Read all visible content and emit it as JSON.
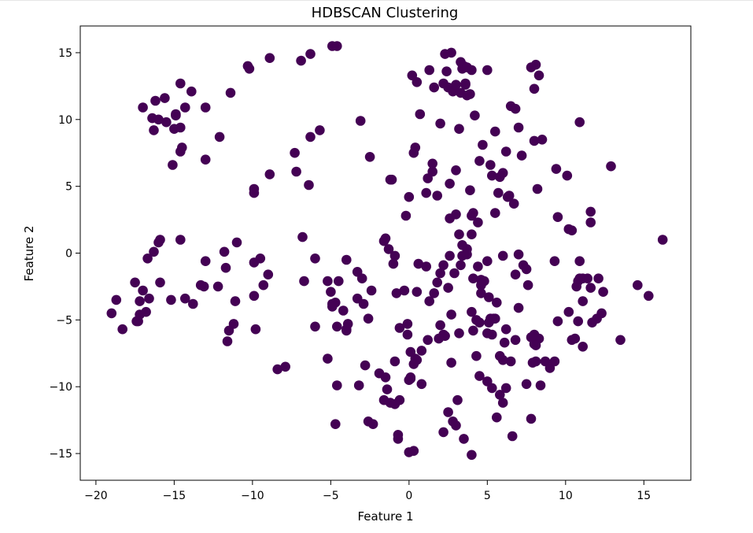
{
  "chart_data": {
    "type": "scatter",
    "title": "HDBSCAN Clustering",
    "xlabel": "Feature 1",
    "ylabel": "Feature 2",
    "xlim": [
      -21,
      18
    ],
    "ylim": [
      -17,
      17
    ],
    "xticks": [
      -20,
      -15,
      -10,
      -5,
      0,
      5,
      10,
      15
    ],
    "yticks": [
      -15,
      -10,
      -5,
      0,
      5,
      10,
      15
    ],
    "xtick_labels": [
      "−20",
      "−15",
      "−10",
      "−5",
      "0",
      "5",
      "10",
      "15"
    ],
    "ytick_labels": [
      "−15",
      "−10",
      "−5",
      "0",
      "5",
      "10",
      "15"
    ],
    "grid": false,
    "legend": "none",
    "point_color": "#440154",
    "series": [
      {
        "x": [
          -14.6,
          -15.6,
          -14.9,
          -14.3,
          -16.4,
          -13.9,
          -17.0,
          -16.2,
          -15.5,
          -16.3,
          -14.6,
          -15.0,
          -14.9,
          -14.6,
          -14.5,
          -16.0,
          -15.1,
          -13.0,
          -13.0,
          -12.1,
          -11.4,
          -10.2,
          -10.3,
          -8.9,
          -6.9,
          -6.3,
          -4.9,
          -4.6,
          -7.2,
          -7.3,
          -8.9,
          -9.9,
          -9.9,
          -6.3,
          -6.4,
          -5.7,
          -3.1,
          -2.5,
          -1.2,
          -1.1,
          -15.9,
          -16.0,
          -14.6,
          -16.7,
          -17.0,
          -16.3,
          -17.5,
          -15.9,
          -17.2,
          -16.8,
          -17.3,
          -19.0,
          -18.7,
          -18.3,
          -17.4,
          -17.2,
          -16.6,
          -15.2,
          -14.3,
          -13.8,
          -13.1,
          -13.0,
          -13.3,
          -12.2,
          -11.8,
          -11.1,
          -11.2,
          -11.5,
          -11.6,
          -11.7,
          -11.0,
          -9.9,
          -9.9,
          -9.5,
          -9.3,
          -9.0,
          -9.8,
          -8.4,
          -7.9,
          -6.8,
          -6.7,
          -6.0,
          -6.0,
          -4.7,
          -4.9,
          -4.5,
          -4.2,
          -4.0,
          -3.9,
          -4.0,
          -3.3,
          -3.0,
          -2.4,
          -3.2,
          -2.8,
          -2.6,
          -2.3,
          -5.2,
          -5.0,
          -4.9,
          -5.2,
          -4.6,
          -4.7,
          -4.6,
          -4.0,
          -2.6,
          -1.9,
          -1.5,
          -1.4,
          -1.6,
          -1.2,
          -0.9,
          -0.9,
          -0.7,
          -0.7,
          -1.6,
          -1.5,
          -1.3,
          -1.0,
          -0.8,
          -3.3,
          -2.9,
          -0.6,
          -0.1,
          0.1,
          0.4,
          0.5,
          0.6,
          1.1,
          1.3,
          0.8,
          0.1,
          0.3,
          0.0,
          -0.9,
          -0.2,
          0.0,
          0.3,
          0.4,
          0.5,
          0.2,
          0.7,
          1.1,
          1.2,
          1.5,
          1.8,
          2.0,
          2.2,
          2.4,
          1.6,
          1.3,
          1.5,
          2.5,
          2.8,
          3.0,
          3.3,
          3.4,
          3.6,
          3.7,
          2.3,
          2.7,
          3.2,
          3.0,
          2.6,
          3.9,
          4.0,
          4.2,
          3.5,
          3.3,
          3.6,
          3.9,
          3.7,
          4.0,
          4.1,
          4.4,
          5.0,
          4.5,
          4.7,
          5.2,
          5.5,
          5.3,
          5.8,
          6.0,
          5.7,
          5.5,
          6.3,
          6.4,
          6.2,
          6.5,
          6.8,
          7.0,
          7.2,
          6.7,
          8.0,
          8.2,
          8.5,
          8.0,
          8.3,
          8.1,
          7.8,
          9.4,
          9.5,
          10.1,
          10.9,
          10.2,
          10.4,
          10.9,
          11.6,
          11.6,
          12.9,
          11.1,
          11.6,
          4.0,
          4.3,
          4.5,
          5.0,
          5.3,
          5.6,
          6.0,
          6.5,
          6.2,
          5.8,
          6.6,
          7.5,
          7.8,
          8.0,
          8.4,
          7.3,
          7.0,
          4.1,
          4.3,
          4.5,
          5.2,
          5.6,
          5.0,
          4.1,
          3.4,
          3.2,
          2.7,
          2.3,
          2.0,
          1.6,
          1.8,
          2.0,
          2.2,
          6.0,
          7.0,
          7.5,
          6.8,
          7.6,
          8.0,
          8.3,
          8.1,
          7.9,
          8.7,
          9.0,
          9.3,
          9.5,
          10.2,
          10.4,
          10.6,
          10.8,
          11.1,
          12.0,
          12.3,
          11.7,
          12.4,
          12.1,
          10.7,
          10.8,
          11.4,
          11.1,
          3.7,
          3.3,
          2.9,
          2.6,
          2.5,
          2.7,
          2.2,
          1.9,
          1.2,
          0.8,
          0.5,
          0.1,
          -0.6,
          -0.3,
          -0.1,
          0.3,
          0.0,
          2.6,
          3.0,
          3.2,
          3.4,
          3.7,
          4.0,
          4.4,
          4.6,
          4.8,
          5.1,
          5.3,
          5.5,
          6.0,
          6.1,
          5.8,
          5.0,
          4.6,
          4.0,
          3.5,
          3.0,
          2.5,
          2.2,
          2.8,
          3.1,
          14.6,
          15.3,
          16.2,
          13.5,
          10.9,
          9.3,
          8.1,
          7.8,
          6.8,
          6.2,
          5.4,
          5.1,
          4.6
        ],
        "y": [
          12.7,
          11.6,
          10.4,
          10.9,
          10.1,
          12.1,
          10.9,
          11.4,
          9.8,
          9.2,
          9.4,
          9.3,
          10.3,
          7.6,
          7.9,
          10.0,
          6.6,
          7.0,
          10.9,
          8.7,
          12.0,
          13.8,
          14.0,
          14.6,
          14.4,
          14.9,
          15.5,
          15.5,
          6.1,
          7.5,
          5.9,
          4.8,
          4.5,
          8.7,
          5.1,
          9.2,
          9.9,
          7.2,
          5.5,
          5.5,
          1.0,
          0.8,
          1.0,
          -0.4,
          -2.8,
          0.1,
          -2.2,
          -2.2,
          -3.6,
          -4.4,
          -5.1,
          -4.5,
          -3.5,
          -5.7,
          -5.1,
          -4.6,
          -3.4,
          -3.5,
          -3.4,
          -3.8,
          -2.5,
          -0.6,
          -2.4,
          -2.5,
          0.1,
          -3.6,
          -5.3,
          -5.8,
          -6.6,
          -1.1,
          0.8,
          -3.2,
          -0.7,
          -0.4,
          -2.4,
          -1.6,
          -5.7,
          -8.7,
          -8.5,
          1.2,
          -2.1,
          -0.4,
          -5.5,
          -3.7,
          -3.8,
          -2.1,
          -4.3,
          -0.5,
          -5.3,
          -5.8,
          -1.4,
          -1.9,
          -2.8,
          -9.9,
          -8.4,
          -12.6,
          -12.8,
          -2.1,
          -2.9,
          -4.0,
          -7.9,
          -9.9,
          -12.8,
          -5.5,
          -5.7,
          -4.9,
          -9.0,
          -9.3,
          -10.2,
          -11.0,
          -11.2,
          -11.3,
          -8.1,
          -13.6,
          -13.9,
          0.9,
          1.1,
          0.3,
          -0.8,
          -3.0,
          -3.4,
          -3.8,
          -5.6,
          -6.1,
          -7.4,
          -7.9,
          -2.9,
          -0.8,
          -1.0,
          -3.6,
          -9.8,
          -9.4,
          -14.8,
          -14.9,
          -0.2,
          2.8,
          4.2,
          7.5,
          7.9,
          12.8,
          13.3,
          10.4,
          4.5,
          5.6,
          6.1,
          4.3,
          9.7,
          12.7,
          13.6,
          12.4,
          13.7,
          6.7,
          12.4,
          12.1,
          12.6,
          12.0,
          13.8,
          12.7,
          11.8,
          14.9,
          15.0,
          9.3,
          6.2,
          5.2,
          4.7,
          13.7,
          10.3,
          14.0,
          14.3,
          12.6,
          11.9,
          13.9,
          2.8,
          3.0,
          2.3,
          13.7,
          6.9,
          8.1,
          6.6,
          9.1,
          5.8,
          5.7,
          6.0,
          4.5,
          3.0,
          4.2,
          4.3,
          7.6,
          11.0,
          10.8,
          9.4,
          7.3,
          3.7,
          8.4,
          4.8,
          8.5,
          12.3,
          13.3,
          14.1,
          13.9,
          6.3,
          2.7,
          5.8,
          9.8,
          1.8,
          1.7,
          -0.6,
          3.1,
          2.3,
          6.5,
          -1.9,
          -2.6,
          -4.4,
          -7.7,
          -9.2,
          -9.6,
          -10.1,
          -12.3,
          -11.2,
          -8.1,
          -10.1,
          -10.6,
          -13.7,
          -9.8,
          -12.4,
          -6.1,
          -9.9,
          -0.9,
          -4.1,
          -5.8,
          -5.0,
          -5.2,
          -4.9,
          -3.7,
          -0.6,
          -1.9,
          -0.2,
          -6.0,
          -4.6,
          -6.2,
          -5.4,
          -3.0,
          -2.2,
          -1.5,
          -0.9,
          -0.2,
          -0.1,
          -1.2,
          -1.6,
          -2.4,
          -6.8,
          -6.4,
          -8.1,
          -8.2,
          -8.1,
          -8.6,
          -8.1,
          -5.1,
          -4.4,
          -6.5,
          -6.4,
          -5.1,
          -7.0,
          -4.9,
          -4.5,
          -5.2,
          -2.9,
          -1.9,
          -2.5,
          -2.1,
          -1.9,
          -3.6,
          0.3,
          -0.9,
          -1.5,
          -0.2,
          -2.6,
          -8.2,
          -6.1,
          -6.4,
          -6.5,
          -7.3,
          -8.0,
          -9.3,
          -11.0,
          -2.8,
          -5.3,
          -8.3,
          -9.5,
          2.6,
          2.9,
          1.4,
          0.6,
          -0.1,
          1.4,
          -1.0,
          -2.0,
          -2.1,
          -3.3,
          -6.1,
          -4.9,
          -8.0,
          -6.7,
          -7.7,
          -6.0,
          -3.0,
          -15.1,
          -13.9,
          -12.9,
          -11.9,
          -13.4,
          -12.6,
          -11.0,
          -2.4,
          -3.2,
          1.0,
          -6.5,
          -1.9,
          -0.6,
          -6.9,
          -6.3,
          -6.5,
          -5.7,
          -4.9,
          -5.2,
          -2.4
        ]
      }
    ]
  }
}
